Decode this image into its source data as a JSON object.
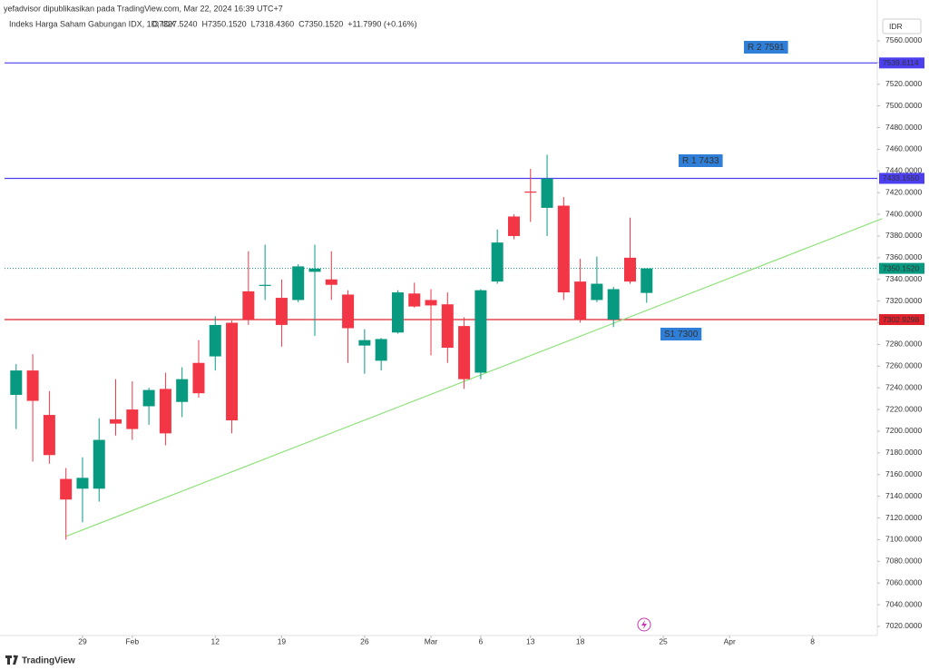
{
  "chart_data": {
    "type": "candlestick",
    "publisher": "yefadvisor dipublikasikan pada TradingView.com, Mar 22, 2024 16:39 UTC+7",
    "title": "Indeks Harga Saham Gabungan IDX, 1D, IDX",
    "legend_values": [
      {
        "value": 7327.524,
        "label": "O7327.5240"
      },
      {
        "value": 7350.152,
        "label": "H7350.1520"
      },
      {
        "value": 7318.436,
        "label": "L7318.4360"
      },
      {
        "value": 7350.152,
        "label": "C7350.1520"
      },
      {
        "value": 11.799,
        "label": "+11.7990 (+0.16%)"
      }
    ],
    "currency": "IDR",
    "brand": "TradingView",
    "up_color": "#089981",
    "down_color": "#f23645",
    "open": [
      7233.5,
      7256,
      7215,
      7156,
      7147,
      7147,
      7211,
      7220,
      7223,
      7239,
      7227,
      7263,
      7269,
      7300,
      7329,
      7334,
      7323,
      7321,
      7347,
      7340,
      7326,
      7279,
      7265,
      7291,
      7327,
      7321,
      7317,
      7297,
      7254,
      7338,
      7398,
      7421,
      7406,
      7408,
      7338,
      7321,
      7303,
      7360,
      7327.524
    ],
    "high": [
      7262,
      7271,
      7237,
      7166,
      7176,
      7212,
      7248,
      7246,
      7240,
      7254,
      7259,
      7284,
      7306,
      7302,
      7366,
      7372,
      7340,
      7354,
      7372,
      7366,
      7330,
      7294,
      7286,
      7330,
      7337,
      7331,
      7328,
      7305,
      7331,
      7386,
      7400,
      7442,
      7455,
      7416,
      7359,
      7361,
      7333,
      7397,
      7350.152
    ],
    "low": [
      7202,
      7172,
      7170,
      7100,
      7116,
      7135,
      7196,
      7192,
      7206,
      7187,
      7213,
      7231,
      7256,
      7198,
      7298,
      7321,
      7278,
      7319,
      7288,
      7321,
      7263,
      7253,
      7256,
      7290,
      7314,
      7270,
      7263,
      7239,
      7248,
      7336,
      7377,
      7393,
      7380,
      7321,
      7300,
      7319,
      7296,
      7336,
      7318.436
    ],
    "close": [
      7256,
      7228,
      7178,
      7137,
      7157,
      7192,
      7207,
      7202,
      7238,
      7198,
      7248,
      7235,
      7298,
      7210,
      7303,
      7335,
      7298,
      7352,
      7350,
      7335,
      7295,
      7284,
      7285,
      7328,
      7315,
      7316,
      7277,
      7248,
      7330,
      7374,
      7380,
      7420,
      7433,
      7328,
      7303,
      7336,
      7331,
      7338,
      7350.152
    ],
    "xlim": [
      -0.7,
      51.9
    ],
    "ylim": [
      7011.6,
      7591.8
    ],
    "xticks": [
      {
        "value": 4,
        "label": "29"
      },
      {
        "value": 7,
        "label": "Feb"
      },
      {
        "value": 12,
        "label": "12"
      },
      {
        "value": 16,
        "label": "19"
      },
      {
        "value": 21,
        "label": "26"
      },
      {
        "value": 25,
        "label": "Mar"
      },
      {
        "value": 28,
        "label": "6"
      },
      {
        "value": 31,
        "label": "13"
      },
      {
        "value": 34,
        "label": "18"
      },
      {
        "value": 39,
        "label": "25"
      },
      {
        "value": 43,
        "label": "Apr"
      },
      {
        "value": 48,
        "label": "8"
      }
    ],
    "yticks": [
      {
        "value": 7560,
        "label": "7560.0000"
      },
      {
        "value": 7540,
        "label": "7540.0000"
      },
      {
        "value": 7520,
        "label": "7520.0000"
      },
      {
        "value": 7500,
        "label": "7500.0000"
      },
      {
        "value": 7480,
        "label": "7480.0000"
      },
      {
        "value": 7460,
        "label": "7460.0000"
      },
      {
        "value": 7440,
        "label": "7440.0000"
      },
      {
        "value": 7420,
        "label": "7420.0000"
      },
      {
        "value": 7400,
        "label": "7400.0000"
      },
      {
        "value": 7380,
        "label": "7380.0000"
      },
      {
        "value": 7360,
        "label": "7360.0000"
      },
      {
        "value": 7340,
        "label": "7340.0000"
      },
      {
        "value": 7320,
        "label": "7320.0000"
      },
      {
        "value": 7300,
        "label": "7300.0000"
      },
      {
        "value": 7280,
        "label": "7280.0000"
      },
      {
        "value": 7260,
        "label": "7260.0000"
      },
      {
        "value": 7240,
        "label": "7240.0000"
      },
      {
        "value": 7220,
        "label": "7220.0000"
      },
      {
        "value": 7200,
        "label": "7200.0000"
      },
      {
        "value": 7180,
        "label": "7180.0000"
      },
      {
        "value": 7160,
        "label": "7160.0000"
      },
      {
        "value": 7140,
        "label": "7140.0000"
      },
      {
        "value": 7120,
        "label": "7120.0000"
      },
      {
        "value": 7100,
        "label": "7100.0000"
      },
      {
        "value": 7080,
        "label": "7080.0000"
      },
      {
        "value": 7060,
        "label": "7060.0000"
      },
      {
        "value": 7040,
        "label": "7040.0000"
      },
      {
        "value": 7020,
        "label": "7020.0000"
      }
    ],
    "hlines": [
      {
        "value": 7539.6114,
        "label": "7539.6114",
        "color": "#4b3ff0",
        "style": "solid"
      },
      {
        "value": 7433.155,
        "label": "7433.1550",
        "color": "#4b3ff0",
        "style": "solid"
      },
      {
        "value": 7350.152,
        "label": "7350.1520",
        "color": "#089981",
        "style": "dotted"
      },
      {
        "value": 7302.9298,
        "label": "7302.9298",
        "color": "#e0202b",
        "style": "solid"
      }
    ],
    "trendline": {
      "x": [
        3,
        52.2
      ],
      "y": [
        7103,
        7396
      ],
      "color": "#8fe37a"
    },
    "annotations": [
      "R 2 7591",
      "R 1 7433",
      "S1 7300"
    ],
    "annotation_color": "#2f7fd8"
  }
}
